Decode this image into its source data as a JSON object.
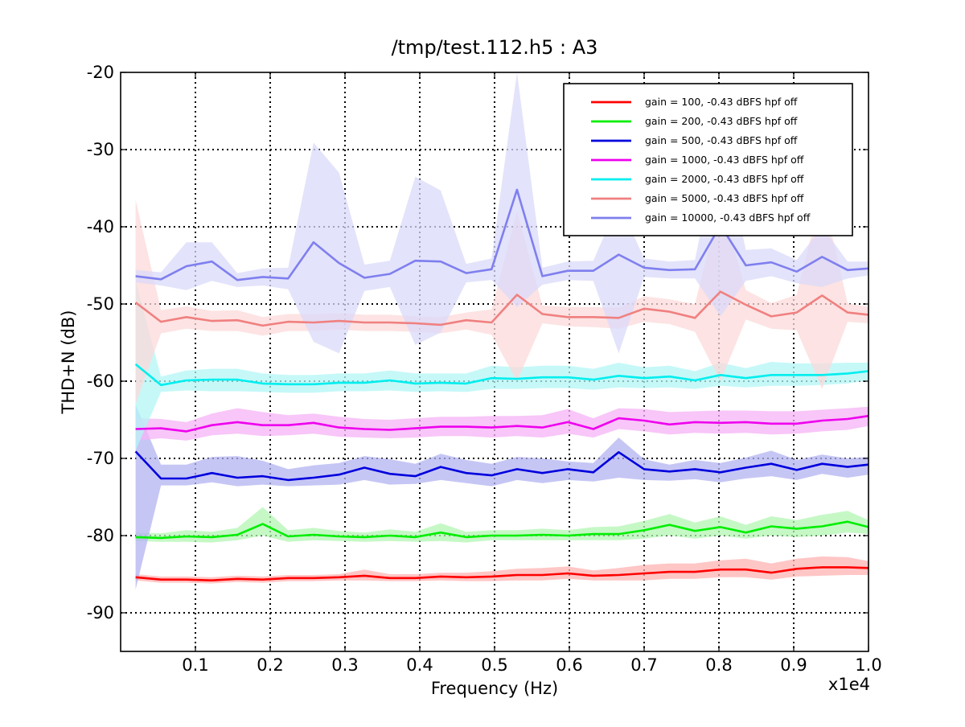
{
  "chart_data": {
    "type": "line",
    "title": "/tmp/test.112.h5 : A3",
    "xlabel": "Frequency (Hz)",
    "ylabel": "THD+N (dB)",
    "x_multiplier": "x1e4",
    "xlim": [
      0.0,
      1.0
    ],
    "ylim": [
      -95,
      -20
    ],
    "grid": true,
    "legend_position": "top-right",
    "x_ticks": [
      0.1,
      0.2,
      0.3,
      0.4,
      0.5,
      0.6,
      0.7,
      0.8,
      0.9,
      1.0
    ],
    "x_tick_labels": [
      "0.1",
      "0.2",
      "0.3",
      "0.4",
      "0.5",
      "0.6",
      "0.7",
      "0.8",
      "0.9",
      "1.0"
    ],
    "y_ticks": [
      -20,
      -30,
      -40,
      -50,
      -60,
      -70,
      -80,
      -90
    ],
    "y_tick_labels": [
      "-20",
      "-30",
      "-40",
      "-50",
      "-60",
      "-70",
      "-80",
      "-90"
    ],
    "x": [
      0.02,
      0.054,
      0.088,
      0.122,
      0.156,
      0.19,
      0.224,
      0.258,
      0.292,
      0.326,
      0.36,
      0.394,
      0.428,
      0.462,
      0.496,
      0.53,
      0.564,
      0.598,
      0.632,
      0.666,
      0.7,
      0.734,
      0.768,
      0.802,
      0.836,
      0.87,
      0.904,
      0.938,
      0.972,
      1.0
    ],
    "series": [
      {
        "name": "gain = 100, -0.43 dBFS  hpf off",
        "color": "#ff0000",
        "fill_color": "#ffb3b3",
        "values": [
          -85.4,
          -85.7,
          -85.7,
          -85.8,
          -85.6,
          -85.7,
          -85.5,
          -85.5,
          -85.4,
          -85.2,
          -85.5,
          -85.5,
          -85.3,
          -85.4,
          -85.3,
          -85.1,
          -85.1,
          -84.9,
          -85.2,
          -85.1,
          -84.9,
          -84.7,
          -84.7,
          -84.4,
          -84.4,
          -84.8,
          -84.3,
          -84.1,
          -84.1,
          -84.2
        ],
        "upper": [
          -85.0,
          -85.3,
          -85.3,
          -85.4,
          -85.2,
          -85.3,
          -85.1,
          -85.1,
          -85.0,
          -84.4,
          -85.0,
          -85.0,
          -84.8,
          -84.8,
          -84.6,
          -84.3,
          -84.2,
          -84.0,
          -84.5,
          -84.2,
          -83.8,
          -83.6,
          -83.6,
          -83.2,
          -83.0,
          -83.6,
          -83.0,
          -82.7,
          -82.8,
          -83.3
        ],
        "lower": [
          -85.8,
          -86.1,
          -86.1,
          -86.2,
          -86.0,
          -86.1,
          -85.9,
          -85.9,
          -85.8,
          -85.8,
          -85.9,
          -85.9,
          -85.8,
          -85.9,
          -85.9,
          -85.8,
          -85.8,
          -85.6,
          -85.8,
          -85.8,
          -85.8,
          -85.6,
          -85.6,
          -85.4,
          -85.4,
          -85.7,
          -85.3,
          -85.2,
          -85.1,
          -85.1
        ]
      },
      {
        "name": "gain = 200, -0.43 dBFS  hpf off",
        "color": "#00ee00",
        "fill_color": "#b3f5b3",
        "values": [
          -80.2,
          -80.3,
          -80.1,
          -80.2,
          -79.9,
          -78.5,
          -80.1,
          -79.9,
          -80.1,
          -80.2,
          -80.0,
          -80.2,
          -79.6,
          -80.2,
          -80.0,
          -80.0,
          -79.9,
          -80.0,
          -79.8,
          -79.8,
          -79.3,
          -78.6,
          -79.4,
          -78.9,
          -79.6,
          -78.8,
          -79.1,
          -78.8,
          -78.2,
          -78.9
        ],
        "upper": [
          -79.6,
          -79.7,
          -79.3,
          -79.5,
          -79.0,
          -76.3,
          -79.3,
          -79.0,
          -79.4,
          -79.6,
          -79.2,
          -79.5,
          -78.4,
          -79.5,
          -79.3,
          -79.3,
          -79.1,
          -79.3,
          -78.9,
          -78.8,
          -78.1,
          -77.2,
          -78.3,
          -77.5,
          -78.6,
          -77.5,
          -78.0,
          -77.3,
          -76.8,
          -78.0
        ],
        "lower": [
          -80.7,
          -80.8,
          -80.8,
          -80.9,
          -80.6,
          -80.0,
          -80.8,
          -80.6,
          -80.7,
          -80.8,
          -80.7,
          -80.8,
          -80.7,
          -80.9,
          -80.6,
          -80.6,
          -80.6,
          -80.6,
          -80.6,
          -80.6,
          -80.4,
          -80.0,
          -80.4,
          -80.0,
          -80.4,
          -80.0,
          -80.2,
          -80.0,
          -79.6,
          -79.8
        ]
      },
      {
        "name": "gain = 500, -0.43 dBFS  hpf off",
        "color": "#0000dd",
        "fill_color": "#b3b3f2",
        "values": [
          -69.1,
          -72.6,
          -72.6,
          -71.9,
          -72.5,
          -72.3,
          -72.8,
          -72.5,
          -72.1,
          -71.2,
          -72.0,
          -72.3,
          -71.1,
          -71.9,
          -72.2,
          -71.4,
          -71.9,
          -71.4,
          -71.8,
          -69.2,
          -71.4,
          -71.7,
          -71.4,
          -71.8,
          -71.2,
          -70.7,
          -71.5,
          -70.7,
          -71.1,
          -70.8
        ],
        "upper": [
          -63.0,
          -70.8,
          -70.8,
          -69.8,
          -69.7,
          -70.3,
          -71.4,
          -70.9,
          -70.6,
          -69.7,
          -70.1,
          -70.7,
          -69.4,
          -70.2,
          -70.7,
          -69.8,
          -70.0,
          -70.4,
          -70.6,
          -67.3,
          -70.1,
          -70.8,
          -70.2,
          -70.6,
          -69.9,
          -69.0,
          -70.2,
          -69.5,
          -70.0,
          -69.8
        ],
        "lower": [
          -87.0,
          -73.5,
          -73.5,
          -73.1,
          -73.6,
          -73.4,
          -73.6,
          -73.5,
          -73.4,
          -72.8,
          -73.4,
          -73.3,
          -72.8,
          -73.2,
          -73.6,
          -72.8,
          -73.2,
          -72.8,
          -73.0,
          -72.5,
          -72.8,
          -72.9,
          -72.7,
          -73.1,
          -72.6,
          -72.3,
          -72.8,
          -72.0,
          -72.5,
          -72.1
        ]
      },
      {
        "name": "gain = 1000, -0.43 dBFS  hpf off",
        "color": "#ee00ee",
        "fill_color": "#f5b3f5",
        "values": [
          -66.2,
          -66.1,
          -66.5,
          -65.7,
          -65.3,
          -65.7,
          -65.7,
          -65.4,
          -66.0,
          -66.2,
          -66.3,
          -66.1,
          -65.9,
          -65.9,
          -66.0,
          -65.8,
          -66.0,
          -65.3,
          -66.2,
          -64.8,
          -65.1,
          -65.6,
          -65.3,
          -65.4,
          -65.3,
          -65.5,
          -65.5,
          -65.1,
          -64.9,
          -64.5
        ],
        "upper": [
          -64.8,
          -64.9,
          -65.3,
          -64.2,
          -63.5,
          -64.0,
          -64.4,
          -64.2,
          -64.6,
          -64.9,
          -65.0,
          -64.8,
          -64.6,
          -64.6,
          -64.5,
          -64.5,
          -64.4,
          -63.6,
          -64.8,
          -63.5,
          -63.6,
          -64.0,
          -63.9,
          -63.8,
          -63.8,
          -63.9,
          -63.9,
          -63.7,
          -63.5,
          -63.3
        ],
        "lower": [
          -67.7,
          -67.4,
          -67.7,
          -67.0,
          -66.8,
          -67.1,
          -67.0,
          -66.8,
          -67.2,
          -67.3,
          -67.4,
          -67.3,
          -67.1,
          -67.1,
          -67.3,
          -67.1,
          -67.3,
          -66.8,
          -67.3,
          -66.2,
          -66.5,
          -66.9,
          -66.7,
          -66.8,
          -66.7,
          -66.9,
          -66.8,
          -66.5,
          -66.3,
          -65.8
        ]
      },
      {
        "name": "gain = 2000, -0.43 dBFS  hpf off",
        "color": "#00eeee",
        "fill_color": "#b3f5f5",
        "values": [
          -57.8,
          -60.5,
          -59.9,
          -59.8,
          -59.8,
          -60.3,
          -60.4,
          -60.4,
          -60.2,
          -60.2,
          -59.9,
          -60.3,
          -60.2,
          -60.3,
          -59.6,
          -59.7,
          -59.5,
          -59.5,
          -59.8,
          -59.3,
          -59.6,
          -59.4,
          -59.9,
          -59.2,
          -59.6,
          -59.2,
          -59.2,
          -59.2,
          -59.0,
          -58.7
        ],
        "upper": [
          -47.0,
          -59.4,
          -58.6,
          -58.4,
          -58.4,
          -59.0,
          -59.2,
          -59.2,
          -59.0,
          -59.0,
          -58.6,
          -59.0,
          -59.0,
          -59.0,
          -58.0,
          -58.2,
          -58.0,
          -58.0,
          -58.4,
          -57.6,
          -58.2,
          -58.0,
          -58.7,
          -57.6,
          -58.3,
          -57.5,
          -57.7,
          -57.7,
          -57.6,
          -57.6
        ],
        "lower": [
          -69.0,
          -61.4,
          -61.2,
          -61.3,
          -61.3,
          -61.4,
          -61.5,
          -61.5,
          -61.3,
          -61.3,
          -61.2,
          -61.4,
          -61.3,
          -61.4,
          -61.0,
          -61.0,
          -60.9,
          -60.9,
          -61.1,
          -60.8,
          -60.9,
          -60.8,
          -61.0,
          -60.6,
          -60.8,
          -60.6,
          -60.6,
          -60.5,
          -60.3,
          -59.9
        ]
      },
      {
        "name": "gain = 5000, -0.43 dBFS  hpf off",
        "color": "#f08080",
        "fill_color": "#fcd9d9",
        "values": [
          -49.8,
          -52.3,
          -51.7,
          -52.2,
          -52.1,
          -52.8,
          -52.3,
          -52.4,
          -52.2,
          -52.4,
          -52.4,
          -52.5,
          -52.7,
          -52.1,
          -52.4,
          -48.8,
          -51.3,
          -51.7,
          -51.7,
          -51.8,
          -50.6,
          -51.0,
          -51.8,
          -48.4,
          -50.1,
          -51.6,
          -51.1,
          -48.9,
          -51.1,
          -51.4
        ],
        "upper": [
          -36.5,
          -50.8,
          -50.3,
          -50.9,
          -50.8,
          -51.7,
          -51.3,
          -51.3,
          -51.2,
          -51.4,
          -51.4,
          -51.6,
          -51.7,
          -51.1,
          -50.7,
          -38.0,
          -50.2,
          -50.4,
          -50.4,
          -50.5,
          -49.0,
          -49.4,
          -50.0,
          -36.8,
          -48.2,
          -49.9,
          -48.8,
          -35.5,
          -49.9,
          -50.4
        ],
        "lower": [
          -63.0,
          -53.8,
          -53.2,
          -53.5,
          -53.5,
          -54.1,
          -53.5,
          -53.5,
          -53.3,
          -53.5,
          -53.5,
          -53.6,
          -53.8,
          -53.3,
          -54.0,
          -60.0,
          -52.5,
          -52.9,
          -53.0,
          -53.2,
          -52.3,
          -52.6,
          -53.6,
          -60.0,
          -52.0,
          -53.2,
          -53.4,
          -61.0,
          -52.3,
          -52.5
        ]
      },
      {
        "name": "gain = 10000, -0.43 dBFS  hpf off",
        "color": "#7f7fef",
        "fill_color": "#dadafa",
        "values": [
          -46.4,
          -46.8,
          -45.1,
          -44.5,
          -46.9,
          -46.5,
          -46.7,
          -42.0,
          -44.7,
          -46.6,
          -46.1,
          -44.4,
          -44.5,
          -46.0,
          -45.5,
          -35.2,
          -46.4,
          -45.7,
          -45.7,
          -43.6,
          -45.3,
          -45.6,
          -45.5,
          -39.8,
          -45.0,
          -44.6,
          -45.8,
          -43.9,
          -45.6,
          -45.4
        ],
        "upper": [
          -45.6,
          -45.9,
          -42.0,
          -42.0,
          -46.0,
          -45.4,
          -45.3,
          -29.1,
          -33.0,
          -44.9,
          -44.4,
          -33.5,
          -35.3,
          -44.8,
          -44.1,
          -20.0,
          -45.3,
          -44.5,
          -44.4,
          -36.8,
          -44.1,
          -44.5,
          -44.3,
          -28.0,
          -43.0,
          -42.8,
          -44.3,
          -40.0,
          -44.5,
          -44.5
        ],
        "lower": [
          -47.2,
          -47.6,
          -48.2,
          -47.0,
          -47.8,
          -47.6,
          -48.1,
          -54.9,
          -56.4,
          -48.3,
          -47.8,
          -55.3,
          -53.7,
          -47.2,
          -46.9,
          -50.4,
          -47.5,
          -46.9,
          -47.0,
          -56.4,
          -46.5,
          -46.7,
          -46.7,
          -51.6,
          -47.0,
          -46.4,
          -47.3,
          -47.8,
          -46.7,
          -46.3
        ]
      }
    ]
  }
}
